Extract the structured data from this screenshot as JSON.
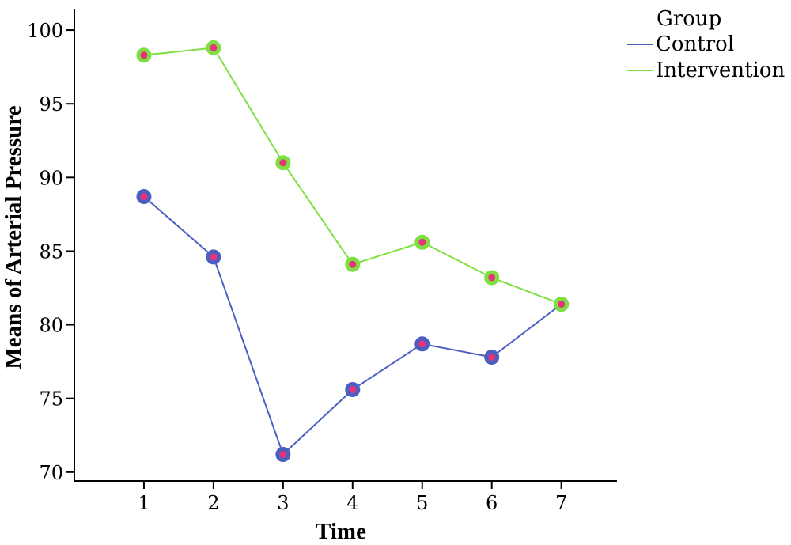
{
  "chart_data": {
    "type": "line",
    "xlabel": "Time",
    "ylabel": "Means of Arterial Pressure",
    "x": [
      1,
      2,
      3,
      4,
      5,
      6,
      7
    ],
    "x_ticks": [
      "1",
      "2",
      "3",
      "4",
      "5",
      "6",
      "7"
    ],
    "xlim": [
      0,
      7.8
    ],
    "ylim": [
      69.4,
      101.4
    ],
    "y_ticks": [
      "70",
      "75",
      "80",
      "85",
      "90",
      "95",
      "100"
    ],
    "grid": false,
    "legend": {
      "title": "Group",
      "placement": "top-right"
    },
    "series": [
      {
        "name": "Control",
        "color": "#4a5fc1",
        "marker_fill": "#e8337a",
        "values": [
          88.7,
          84.6,
          71.2,
          75.6,
          78.7,
          77.8,
          81.4
        ]
      },
      {
        "name": "Intervention",
        "color": "#7de040",
        "marker_fill": "#e8337a",
        "values": [
          98.3,
          98.8,
          91.0,
          84.1,
          85.6,
          83.2,
          81.4
        ]
      }
    ]
  }
}
